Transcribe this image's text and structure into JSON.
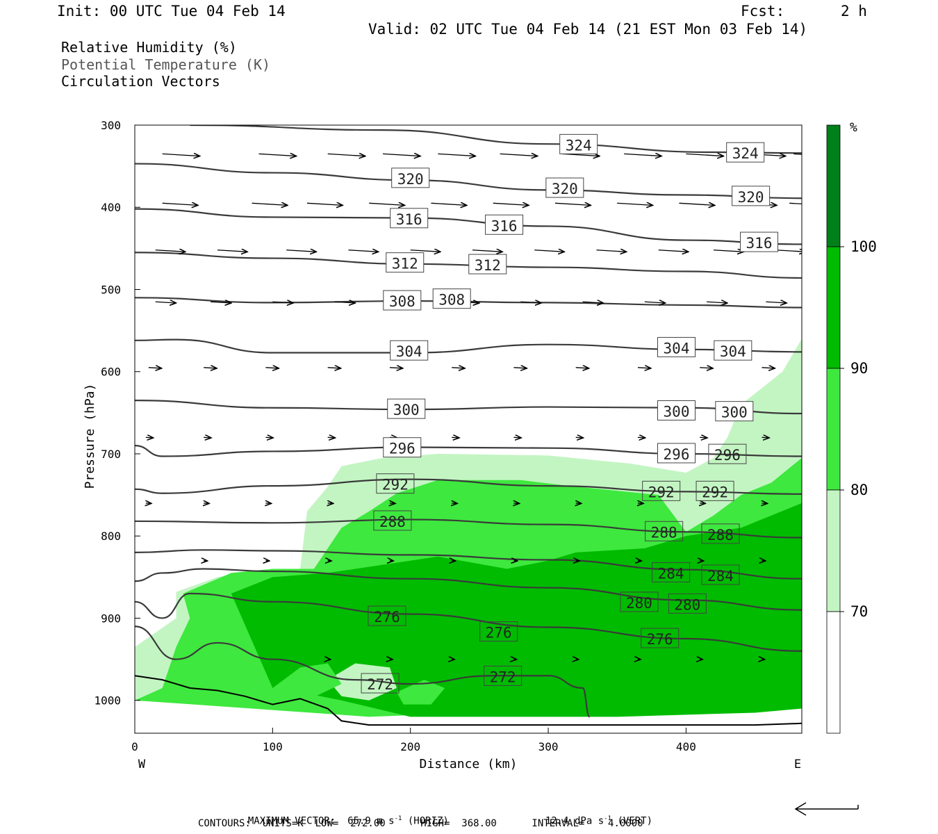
{
  "header": {
    "init": "Init: 00 UTC Tue 04 Feb 14",
    "fcst_label": "Fcst:",
    "fcst_value": "2 h",
    "valid": "Valid: 02 UTC Tue 04 Feb 14 (21 EST Mon 03 Feb 14)"
  },
  "legend": {
    "line1": "Relative Humidity (%)",
    "line2": "Potential Temperature (K)",
    "line3": "Circulation Vectors"
  },
  "colors": {
    "rh70": "#c3f5c3",
    "rh80": "#3ee83e",
    "rh90": "#00bb00",
    "rh100": "#00801a",
    "contour": "#3a3a3a"
  },
  "chart_data": {
    "type": "contour",
    "xlabel": "Distance (km)",
    "ylabel": "Pressure (hPa)",
    "xlim": [
      0,
      484
    ],
    "ylim": [
      1040,
      300
    ],
    "y_scale": "linear-inverted",
    "x_ticks": [
      "0",
      "100",
      "200",
      "300",
      "400"
    ],
    "y_ticks": [
      "300",
      "400",
      "500",
      "600",
      "700",
      "800",
      "900",
      "1000"
    ],
    "x_end_labels": {
      "left": "W",
      "right": "E"
    },
    "colorbar": {
      "unit": "%",
      "levels": [
        "70",
        "80",
        "90",
        "100"
      ]
    },
    "theta_contours": [
      {
        "label": "324",
        "points": [
          [
            40,
            300
          ],
          [
            180,
            306
          ],
          [
            300,
            323
          ],
          [
            420,
            333
          ],
          [
            484,
            334
          ]
        ]
      },
      {
        "label": "320",
        "points": [
          [
            0,
            347
          ],
          [
            100,
            358
          ],
          [
            200,
            367
          ],
          [
            300,
            379
          ],
          [
            400,
            385
          ],
          [
            484,
            389
          ]
        ]
      },
      {
        "label": "316",
        "points": [
          [
            0,
            402
          ],
          [
            100,
            412
          ],
          [
            200,
            413
          ],
          [
            300,
            423
          ],
          [
            400,
            440
          ],
          [
            484,
            445
          ]
        ]
      },
      {
        "label": "312",
        "points": [
          [
            0,
            455
          ],
          [
            100,
            462
          ],
          [
            200,
            469
          ],
          [
            300,
            473
          ],
          [
            400,
            478
          ],
          [
            484,
            486
          ]
        ]
      },
      {
        "label": "308",
        "points": [
          [
            0,
            510
          ],
          [
            100,
            516
          ],
          [
            200,
            514
          ],
          [
            300,
            516
          ],
          [
            400,
            519
          ],
          [
            484,
            522
          ]
        ]
      },
      {
        "label": "304",
        "points": [
          [
            0,
            562
          ],
          [
            30,
            561
          ],
          [
            100,
            577
          ],
          [
            200,
            577
          ],
          [
            300,
            567
          ],
          [
            400,
            573
          ],
          [
            484,
            576
          ]
        ]
      },
      {
        "label": "300",
        "points": [
          [
            0,
            635
          ],
          [
            100,
            644
          ],
          [
            200,
            646
          ],
          [
            300,
            643
          ],
          [
            400,
            644
          ],
          [
            484,
            651
          ]
        ]
      },
      {
        "label": "296",
        "points": [
          [
            0,
            690
          ],
          [
            20,
            703
          ],
          [
            100,
            697
          ],
          [
            200,
            692
          ],
          [
            300,
            693
          ],
          [
            400,
            700
          ],
          [
            484,
            703
          ]
        ]
      },
      {
        "label": "292",
        "points": [
          [
            0,
            743
          ],
          [
            20,
            748
          ],
          [
            100,
            739
          ],
          [
            200,
            731
          ],
          [
            300,
            739
          ],
          [
            400,
            746
          ],
          [
            484,
            749
          ]
        ]
      },
      {
        "label": "288",
        "points": [
          [
            0,
            782
          ],
          [
            100,
            784
          ],
          [
            200,
            780
          ],
          [
            300,
            786
          ],
          [
            400,
            795
          ],
          [
            484,
            802
          ]
        ]
      },
      {
        "label": "284",
        "points": [
          [
            0,
            820
          ],
          [
            50,
            817
          ],
          [
            100,
            818
          ],
          [
            200,
            823
          ],
          [
            300,
            829
          ],
          [
            400,
            841
          ],
          [
            484,
            852
          ]
        ]
      },
      {
        "label": "280",
        "points": [
          [
            0,
            855
          ],
          [
            20,
            845
          ],
          [
            50,
            840
          ],
          [
            100,
            843
          ],
          [
            200,
            852
          ],
          [
            300,
            863
          ],
          [
            400,
            878
          ],
          [
            484,
            890
          ]
        ]
      },
      {
        "label": "276",
        "points": [
          [
            0,
            880
          ],
          [
            20,
            900
          ],
          [
            40,
            870
          ],
          [
            100,
            880
          ],
          [
            200,
            895
          ],
          [
            300,
            911
          ],
          [
            400,
            925
          ],
          [
            484,
            940
          ]
        ]
      },
      {
        "label": "272",
        "points": [
          [
            0,
            910
          ],
          [
            30,
            950
          ],
          [
            60,
            930
          ],
          [
            100,
            950
          ],
          [
            160,
            975
          ],
          [
            200,
            980
          ],
          [
            260,
            970
          ],
          [
            300,
            970
          ],
          [
            325,
            985
          ],
          [
            330,
            1020
          ]
        ]
      }
    ],
    "contour_label_positions": [
      {
        "text": "324",
        "x": 322,
        "p": 324
      },
      {
        "text": "324",
        "x": 443,
        "p": 334
      },
      {
        "text": "320",
        "x": 200,
        "p": 365
      },
      {
        "text": "320",
        "x": 312,
        "p": 377
      },
      {
        "text": "320",
        "x": 447,
        "p": 387
      },
      {
        "text": "316",
        "x": 199,
        "p": 414
      },
      {
        "text": "316",
        "x": 268,
        "p": 422
      },
      {
        "text": "316",
        "x": 453,
        "p": 443
      },
      {
        "text": "312",
        "x": 196,
        "p": 468
      },
      {
        "text": "312",
        "x": 256,
        "p": 470
      },
      {
        "text": "308",
        "x": 194,
        "p": 514
      },
      {
        "text": "308",
        "x": 230,
        "p": 512
      },
      {
        "text": "304",
        "x": 199,
        "p": 575
      },
      {
        "text": "304",
        "x": 393,
        "p": 571
      },
      {
        "text": "304",
        "x": 434,
        "p": 575
      },
      {
        "text": "300",
        "x": 197,
        "p": 646
      },
      {
        "text": "300",
        "x": 393,
        "p": 648
      },
      {
        "text": "300",
        "x": 435,
        "p": 649
      },
      {
        "text": "296",
        "x": 194,
        "p": 693
      },
      {
        "text": "296",
        "x": 393,
        "p": 700
      },
      {
        "text": "296",
        "x": 430,
        "p": 701
      },
      {
        "text": "292",
        "x": 189,
        "p": 737
      },
      {
        "text": "292",
        "x": 382,
        "p": 746
      },
      {
        "text": "292",
        "x": 421,
        "p": 746
      },
      {
        "text": "288",
        "x": 187,
        "p": 782
      },
      {
        "text": "288",
        "x": 384,
        "p": 795
      },
      {
        "text": "288",
        "x": 425,
        "p": 798
      },
      {
        "text": "284",
        "x": 389,
        "p": 845
      },
      {
        "text": "284",
        "x": 425,
        "p": 848
      },
      {
        "text": "280",
        "x": 366,
        "p": 881
      },
      {
        "text": "280",
        "x": 401,
        "p": 883
      },
      {
        "text": "276",
        "x": 183,
        "p": 898
      },
      {
        "text": "276",
        "x": 264,
        "p": 917
      },
      {
        "text": "276",
        "x": 381,
        "p": 925
      },
      {
        "text": "272",
        "x": 178,
        "p": 980
      },
      {
        "text": "272",
        "x": 267,
        "p": 971
      }
    ],
    "rh_regions": [
      {
        "level": "70-80",
        "points": [
          [
            0,
            1000
          ],
          [
            0,
            935
          ],
          [
            30,
            900
          ],
          [
            30,
            868
          ],
          [
            60,
            850
          ],
          [
            100,
            840
          ],
          [
            120,
            840
          ],
          [
            125,
            770
          ],
          [
            140,
            740
          ],
          [
            150,
            715
          ],
          [
            180,
            705
          ],
          [
            220,
            700
          ],
          [
            300,
            702
          ],
          [
            360,
            712
          ],
          [
            400,
            723
          ],
          [
            420,
            705
          ],
          [
            430,
            680
          ],
          [
            440,
            640
          ],
          [
            455,
            620
          ],
          [
            470,
            600
          ],
          [
            484,
            560
          ],
          [
            484,
            1000
          ]
        ]
      },
      {
        "level": "80-90",
        "points": [
          [
            0,
            1000
          ],
          [
            20,
            985
          ],
          [
            30,
            935
          ],
          [
            40,
            900
          ],
          [
            35,
            870
          ],
          [
            70,
            845
          ],
          [
            100,
            840
          ],
          [
            130,
            840
          ],
          [
            140,
            815
          ],
          [
            150,
            790
          ],
          [
            170,
            770
          ],
          [
            190,
            748
          ],
          [
            220,
            732
          ],
          [
            280,
            732
          ],
          [
            320,
            740
          ],
          [
            350,
            745
          ],
          [
            380,
            750
          ],
          [
            400,
            795
          ],
          [
            420,
            775
          ],
          [
            440,
            750
          ],
          [
            462,
            735
          ],
          [
            484,
            705
          ],
          [
            484,
            1000
          ],
          [
            170,
            1020
          ]
        ]
      },
      {
        "level": "90-100",
        "points": [
          [
            70,
            870
          ],
          [
            100,
            850
          ],
          [
            140,
            845
          ],
          [
            180,
            835
          ],
          [
            220,
            825
          ],
          [
            270,
            840
          ],
          [
            300,
            830
          ],
          [
            320,
            820
          ],
          [
            340,
            818
          ],
          [
            370,
            815
          ],
          [
            400,
            800
          ],
          [
            440,
            790
          ],
          [
            484,
            760
          ],
          [
            484,
            1010
          ],
          [
            450,
            1015
          ],
          [
            350,
            1020
          ],
          [
            200,
            1020
          ],
          [
            150,
            1000
          ],
          [
            120,
            990
          ],
          [
            100,
            985
          ]
        ]
      }
    ],
    "rh_inner_low": [
      {
        "level": "70-80",
        "points": [
          [
            140,
            975
          ],
          [
            160,
            955
          ],
          [
            185,
            960
          ],
          [
            190,
            985
          ],
          [
            170,
            1000
          ],
          [
            150,
            995
          ]
        ]
      },
      {
        "level": "80-90",
        "points": [
          [
            190,
            990
          ],
          [
            210,
            975
          ],
          [
            225,
            985
          ],
          [
            215,
            1005
          ],
          [
            195,
            1005
          ]
        ]
      },
      {
        "level": "80-90",
        "points": [
          [
            100,
            985
          ],
          [
            120,
            960
          ],
          [
            140,
            955
          ],
          [
            150,
            980
          ],
          [
            125,
            1000
          ]
        ]
      }
    ],
    "vector_rows": [
      {
        "p": 335,
        "len": 40,
        "xs": [
          20,
          90,
          140,
          180,
          220,
          265,
          310,
          355,
          400,
          445,
          478
        ]
      },
      {
        "p": 395,
        "len": 38,
        "xs": [
          20,
          85,
          125,
          170,
          215,
          260,
          305,
          350,
          395,
          440,
          475
        ]
      },
      {
        "p": 452,
        "len": 32,
        "xs": [
          15,
          60,
          110,
          155,
          200,
          245,
          290,
          335,
          380,
          420,
          465
        ]
      },
      {
        "p": 515,
        "len": 22,
        "xs": [
          15,
          55,
          100,
          145,
          190,
          235,
          280,
          325,
          370,
          415,
          458
        ]
      },
      {
        "p": 595,
        "len": 14,
        "xs": [
          10,
          50,
          95,
          140,
          185,
          230,
          275,
          320,
          365,
          410,
          455
        ]
      },
      {
        "p": 680,
        "len": 8,
        "xs": [
          8,
          50,
          95,
          140,
          185,
          230,
          275,
          320,
          365,
          410,
          455
        ]
      },
      {
        "p": 760,
        "len": 6,
        "xs": [
          8,
          50,
          95,
          140,
          185,
          230,
          275,
          320,
          365,
          410,
          455
        ]
      },
      {
        "p": 830,
        "len": 4,
        "xs": [
          50,
          95,
          140,
          185,
          230,
          275,
          320,
          365,
          410,
          455
        ]
      },
      {
        "p": 950,
        "len": 3,
        "xs": [
          140,
          185,
          230,
          275,
          320,
          365,
          410,
          455
        ]
      }
    ],
    "surface_line": [
      [
        0,
        970
      ],
      [
        20,
        975
      ],
      [
        40,
        985
      ],
      [
        60,
        988
      ],
      [
        80,
        995
      ],
      [
        100,
        1005
      ],
      [
        120,
        998
      ],
      [
        140,
        1010
      ],
      [
        150,
        1025
      ],
      [
        170,
        1030
      ],
      [
        200,
        1030
      ],
      [
        260,
        1030
      ],
      [
        300,
        1030
      ],
      [
        350,
        1030
      ],
      [
        400,
        1030
      ],
      [
        450,
        1030
      ],
      [
        484,
        1028
      ]
    ]
  },
  "footer": {
    "max_vector": "MAXIMUM VECTOR:  65.9 m s",
    "max_vector_exp": "-1",
    "horiz": "(HORIZ)",
    "vert_val": "12.4 dPa s",
    "vert_exp": "-1",
    "vert": "(VERT)",
    "contours": "CONTOURS:  UNITS=K  LOW=  272.00      HIGH=  368.00      INTERVAL=    4.0000"
  }
}
